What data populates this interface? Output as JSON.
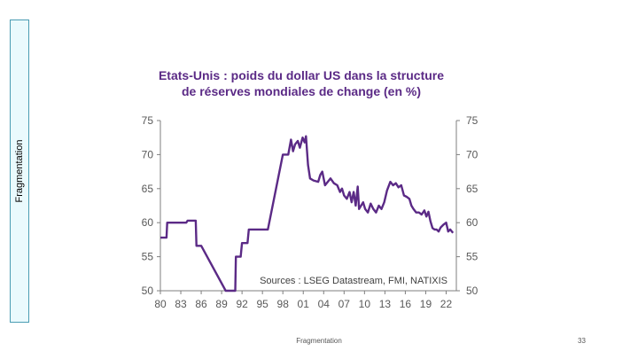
{
  "slide": {
    "side_label": "Fragmentation",
    "footer": "Fragmentation",
    "page_number": "33"
  },
  "colors": {
    "line": "#5b2a86",
    "title": "#5b2a86",
    "axis": "#7f7f7f"
  },
  "chart_data": {
    "type": "line",
    "title_line1": "Etats-Unis : poids du dollar US dans la structure",
    "title_line2": "de réserves mondiales de change  (en %)",
    "source": "Sources : LSEG Datastream, FMI, NATIXIS",
    "xlim": [
      1980,
      2023.5
    ],
    "ylim": [
      50,
      75
    ],
    "x_ticks": [
      1980,
      1983,
      1986,
      1989,
      1992,
      1995,
      1998,
      2001,
      2004,
      2007,
      2010,
      2013,
      2016,
      2019,
      2022
    ],
    "x_tick_labels": [
      "80",
      "83",
      "86",
      "89",
      "92",
      "95",
      "98",
      "01",
      "04",
      "07",
      "10",
      "13",
      "16",
      "19",
      "22"
    ],
    "y_ticks": [
      50,
      55,
      60,
      65,
      70,
      75
    ],
    "y_tick_labels": [
      "50",
      "55",
      "60",
      "65",
      "70",
      "75"
    ],
    "grid": false,
    "series": [
      {
        "x": [
          1980,
          1980.9,
          1981,
          1983.8,
          1984,
          1985.2,
          1985.3,
          1986,
          1989.6,
          1991,
          1991.1,
          1991.8,
          1992,
          1992.8,
          1993,
          1995.8,
          1998,
          1998.8,
          1999.2,
          1999.5,
          1999.8,
          2000.2,
          2000.5,
          2000.9,
          2001.2,
          2001.4,
          2001.7,
          2002,
          2002.5,
          2003.2,
          2003.5,
          2003.8,
          2004.2,
          2004.6,
          2005,
          2005.5,
          2006,
          2006.4,
          2006.7,
          2007,
          2007.4,
          2007.8,
          2008.1,
          2008.4,
          2008.7,
          2009,
          2009.2,
          2009.5,
          2009.8,
          2010.1,
          2010.5,
          2010.9,
          2011.3,
          2011.7,
          2012.1,
          2012.5,
          2012.9,
          2013.3,
          2013.8,
          2014.2,
          2014.6,
          2015,
          2015.4,
          2015.8,
          2016.2,
          2016.6,
          2016.9,
          2017.2,
          2017.6,
          2018,
          2018.4,
          2018.8,
          2019.1,
          2019.4,
          2019.7,
          2020,
          2020.3,
          2020.6,
          2020.9,
          2021.2,
          2021.6,
          2022,
          2022.3,
          2022.6,
          2023
        ],
        "y": [
          57.8,
          57.8,
          60,
          60,
          60.3,
          60.3,
          56.6,
          56.6,
          50,
          50,
          55,
          55,
          57,
          57,
          59,
          59,
          70,
          70,
          72.2,
          70.5,
          71.5,
          72,
          71,
          72.5,
          71.8,
          72.7,
          68.5,
          66.5,
          66.2,
          66,
          67,
          67.5,
          65.5,
          66,
          66.5,
          65.8,
          65.5,
          64.5,
          65,
          64,
          63.5,
          64.5,
          63,
          64.5,
          62.5,
          65.3,
          62,
          62.5,
          63,
          62,
          61.5,
          62.8,
          62,
          61.5,
          62.5,
          62,
          63,
          64.7,
          66,
          65.5,
          65.8,
          65.2,
          65.5,
          64,
          63.8,
          63.5,
          62.5,
          62,
          61.5,
          61.5,
          61.2,
          61.8,
          60.9,
          61.6,
          60.2,
          59.2,
          59,
          59,
          58.7,
          59.3,
          59.7,
          60,
          58.7,
          59,
          58.5
        ]
      }
    ]
  }
}
